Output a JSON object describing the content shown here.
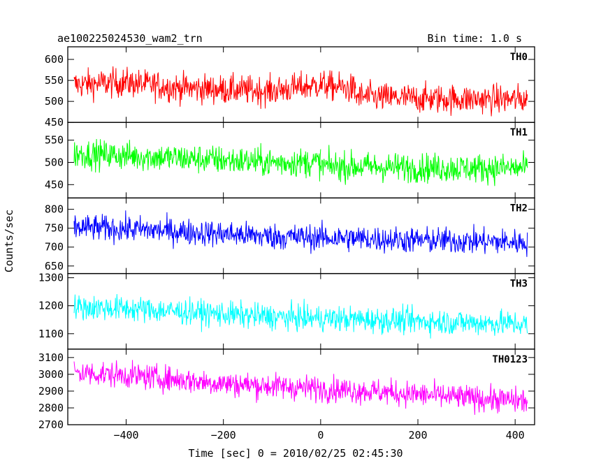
{
  "header": {
    "title": "ae100225024530_wam2_trn",
    "bin_time": "Bin time: 1.0 s"
  },
  "chart_data": {
    "type": "line",
    "title": "ae100225024530_wam2_trn",
    "xlabel": "Time [sec] 0 = 2010/02/25 02:45:30",
    "ylabel": "Counts/sec",
    "xlim": [
      -520,
      440
    ],
    "xticks": [
      -400,
      -200,
      0,
      200,
      400
    ],
    "xtick_labels": [
      "−400",
      "−200",
      "0",
      "200",
      "400"
    ],
    "x_start": -507,
    "x_end": 425,
    "panels": [
      {
        "name": "TH0",
        "color": "#ff0000",
        "ylim": [
          450,
          630
        ],
        "yticks": [
          450,
          500,
          550,
          600
        ],
        "segments": [
          {
            "x": [
              -507,
              -400,
              -300,
              -200,
              -100,
              0,
              72
            ],
            "y": [
              540,
              545,
              533,
              528,
              525,
              540,
              528
            ]
          },
          {
            "x": [
              72,
              150,
              250,
              350,
              425
            ],
            "y": [
              512,
              508,
              506,
              505,
              505
            ]
          }
        ],
        "noise": 32
      },
      {
        "name": "TH1",
        "color": "#00ff00",
        "ylim": [
          420,
          590
        ],
        "yticks": [
          450,
          500,
          550
        ],
        "segments": [
          {
            "x": [
              -507,
              -400,
              -300,
              -200,
              -100,
              0
            ],
            "y": [
              520,
              515,
              510,
              505,
              500,
              500
            ]
          },
          {
            "x": [
              0,
              100,
              200,
              300,
              425
            ],
            "y": [
              492,
              490,
              488,
              487,
              487
            ]
          }
        ],
        "noise": 30
      },
      {
        "name": "TH2",
        "color": "#0000ff",
        "ylim": [
          630,
          830
        ],
        "yticks": [
          650,
          700,
          750,
          800
        ],
        "segments": [
          {
            "x": [
              -507,
              -400,
              -300,
              -200,
              -100,
              0,
              100,
              200,
              300,
              425
            ],
            "y": [
              752,
              748,
              742,
              735,
              728,
              725,
              722,
              718,
              716,
              712
            ]
          }
        ],
        "noise": 32
      },
      {
        "name": "TH3",
        "color": "#00ffff",
        "ylim": [
          1045,
          1315
        ],
        "yticks": [
          1100,
          1200,
          1300
        ],
        "segments": [
          {
            "x": [
              -507,
              -400,
              -300,
              -200,
              -100,
              0,
              100,
              200,
              300,
              425
            ],
            "y": [
              1195,
              1190,
              1180,
              1170,
              1160,
              1155,
              1150,
              1145,
              1140,
              1135
            ]
          }
        ],
        "noise": 42
      },
      {
        "name": "TH0123",
        "color": "#ff00ff",
        "ylim": [
          2700,
          3150
        ],
        "yticks": [
          2700,
          2800,
          2900,
          3000,
          3100
        ],
        "segments": [
          {
            "x": [
              -507,
              -400,
              -300,
              -200,
              -100,
              0,
              100,
              200,
              300,
              425
            ],
            "y": [
              3010,
              2995,
              2970,
              2945,
              2930,
              2915,
              2900,
              2880,
              2860,
              2840
            ]
          }
        ],
        "noise": 70
      }
    ]
  }
}
